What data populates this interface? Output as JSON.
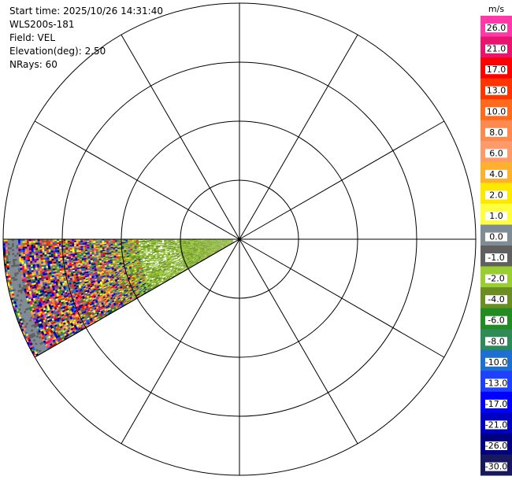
{
  "header": {
    "start_time": "Start time: 2025/10/26 14:31:40",
    "instrument": "WLS200s-181",
    "field": "Field: VEL",
    "elevation": "Elevation(deg): 2.50",
    "nrays": "NRays: 60"
  },
  "chart_data": {
    "type": "heatmap",
    "projection": "polar-ppi",
    "field": "VEL",
    "units": "m/s",
    "elevation_deg": 2.5,
    "nrays": 60,
    "azimuth_sector_deg": [
      240,
      270
    ],
    "range_rings": 4,
    "radial_spokes_deg": [
      0,
      30,
      60,
      90,
      120,
      150,
      180,
      210,
      240,
      270,
      300,
      330
    ],
    "data_description": "Near range mostly -1 to -4 m/s (greens); far range noisy speckle spanning full scale",
    "colorbar": {
      "title": "m/s",
      "ticks": [
        "26.0",
        "21.0",
        "17.0",
        "13.0",
        "10.0",
        "8.0",
        "6.0",
        "4.0",
        "2.0",
        "1.0",
        "0.0",
        "-1.0",
        "-2.0",
        "-4.0",
        "-6.0",
        "-8.0",
        "-10.0",
        "-13.0",
        "-17.0",
        "-21.0",
        "-26.0",
        "-30.0"
      ],
      "colors": [
        "#ff3aa8",
        "#e8146e",
        "#ff0000",
        "#ff3500",
        "#ff6a1c",
        "#ff8a50",
        "#ff9b6a",
        "#ffb02e",
        "#ffe800",
        "#ffff40",
        "#7f8c96",
        "#606060",
        "#9acd32",
        "#6b8e23",
        "#228b22",
        "#2e8b57",
        "#1e70d0",
        "#1e40ff",
        "#0000ff",
        "#0000c0",
        "#000080",
        "#181860"
      ]
    }
  }
}
